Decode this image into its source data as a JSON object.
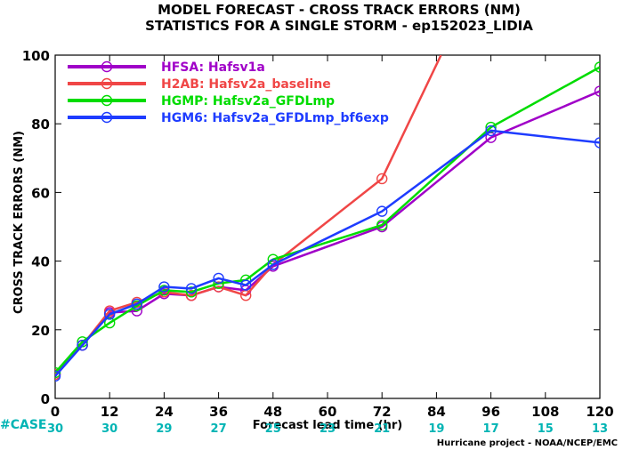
{
  "chart_data": {
    "type": "line",
    "title": "MODEL FORECAST - CROSS TRACK ERRORS (NM)",
    "subtitle": "STATISTICS FOR A SINGLE STORM - ep152023_LIDIA",
    "xlabel": "Forecast lead time (hr)",
    "ylabel": "CROSS TRACK ERRORS (NM)",
    "xlim": [
      0,
      120
    ],
    "ylim": [
      0,
      100
    ],
    "x_ticks": [
      0,
      12,
      24,
      36,
      48,
      60,
      72,
      84,
      96,
      108,
      120
    ],
    "y_ticks": [
      0,
      20,
      40,
      60,
      80,
      100
    ],
    "grid": false,
    "legend_position": "top-left",
    "case_label": "#CASE",
    "case_counts": [
      30,
      30,
      29,
      27,
      25,
      23,
      21,
      19,
      17,
      15,
      13
    ],
    "credit": "Hurricane project - NOAA/NCEP/EMC",
    "series": [
      {
        "name": "HFSA: Hafsv1a",
        "color": "#a000c8",
        "x": [
          0,
          6,
          12,
          18,
          24,
          30,
          36,
          42,
          48,
          72,
          96,
          120
        ],
        "y": [
          7,
          15.5,
          25,
          25.5,
          30.5,
          30,
          32.5,
          31.5,
          38.5,
          50,
          76,
          89.5
        ]
      },
      {
        "name": "H2AB: Hafsv2a_baseline",
        "color": "#f04646",
        "x": [
          0,
          6,
          12,
          18,
          24,
          30,
          36,
          42,
          48,
          72,
          85
        ],
        "y": [
          7,
          15.5,
          25.5,
          28,
          31,
          30,
          32.5,
          30,
          39,
          64,
          100
        ]
      },
      {
        "name": "HGMP: Hafsv2a_GFDLmp",
        "color": "#00dc00",
        "x": [
          0,
          6,
          12,
          18,
          24,
          30,
          36,
          42,
          48,
          72,
          96,
          120
        ],
        "y": [
          7.5,
          16.5,
          22,
          27,
          31.5,
          31,
          33.5,
          34.5,
          40.5,
          50.5,
          79,
          96.5
        ]
      },
      {
        "name": "HGM6: Hafsv2a_GFDLmp_bf6exp",
        "color": "#1e3cff",
        "x": [
          0,
          6,
          12,
          18,
          24,
          30,
          36,
          42,
          48,
          72,
          96,
          120
        ],
        "y": [
          6.5,
          15.5,
          24.5,
          27.5,
          32.5,
          32,
          35,
          33,
          39,
          54.5,
          78,
          74.5
        ]
      }
    ]
  }
}
